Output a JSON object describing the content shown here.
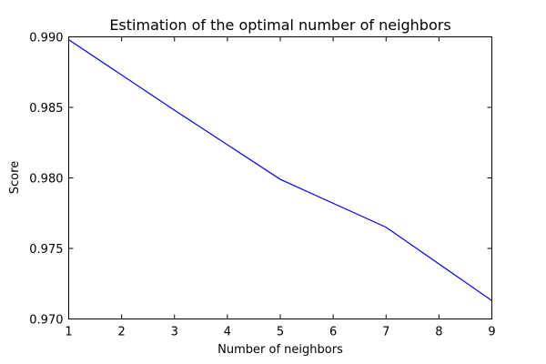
{
  "chart_data": {
    "type": "line",
    "title": "Estimation of the optimal number of neighbors",
    "xlabel": "Number of neighbors",
    "ylabel": "Score",
    "xlim": [
      1,
      9
    ],
    "ylim": [
      0.97,
      0.99
    ],
    "x_ticks": [
      1,
      2,
      3,
      4,
      5,
      6,
      7,
      8,
      9
    ],
    "x_tick_labels": [
      "1",
      "2",
      "3",
      "4",
      "5",
      "6",
      "7",
      "8",
      "9"
    ],
    "y_ticks": [
      0.97,
      0.975,
      0.98,
      0.985,
      0.99
    ],
    "y_tick_labels": [
      "0.970",
      "0.975",
      "0.980",
      "0.985",
      "0.990"
    ],
    "grid": false,
    "series": [
      {
        "color": "#0000ff",
        "x": [
          1,
          3,
          5,
          7,
          9
        ],
        "y": [
          0.9898,
          0.9848,
          0.9799,
          0.9765,
          0.9713
        ]
      }
    ]
  }
}
